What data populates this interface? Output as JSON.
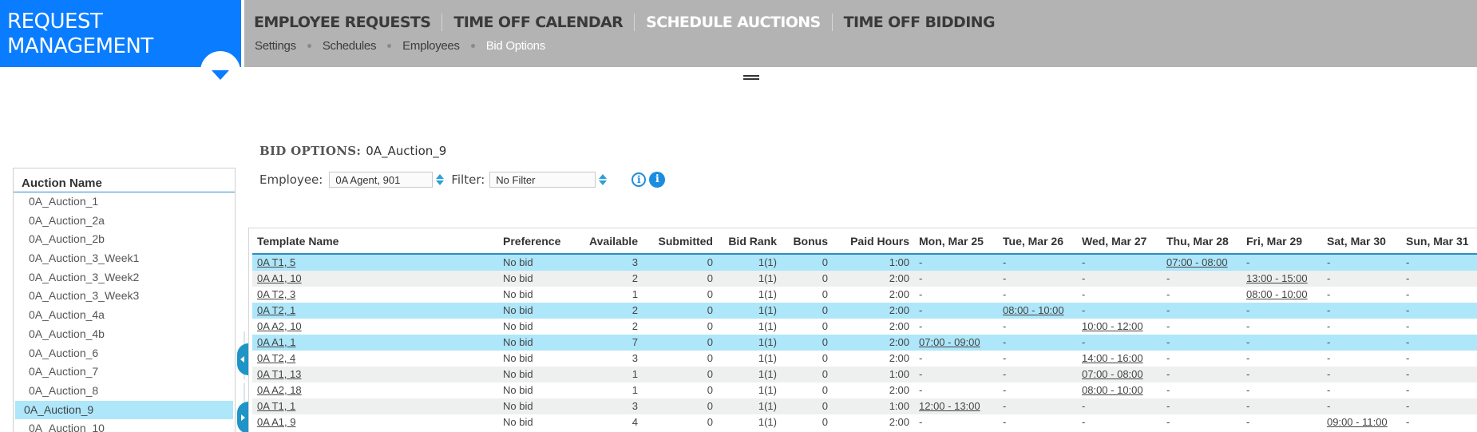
{
  "brand": {
    "line1": "REQUEST",
    "line2": "MANAGEMENT"
  },
  "nav": {
    "tabs": [
      {
        "label": "EMPLOYEE REQUESTS",
        "active": false
      },
      {
        "label": "TIME OFF CALENDAR",
        "active": false
      },
      {
        "label": "SCHEDULE AUCTIONS",
        "active": true
      },
      {
        "label": "TIME OFF BIDDING",
        "active": false
      }
    ],
    "breadcrumbs": [
      {
        "label": "Settings",
        "active": false
      },
      {
        "label": "Schedules",
        "active": false
      },
      {
        "label": "Employees",
        "active": false
      },
      {
        "label": "Bid Options",
        "active": true
      }
    ]
  },
  "page": {
    "title_label": "BID OPTIONS:",
    "title_value": "0A_Auction_9",
    "employee_label": "Employee:",
    "employee_value": "0A Agent, 901",
    "filter_label": "Filter:",
    "filter_value": "No Filter",
    "info_icon_outline": "i",
    "info_icon_filled": "i"
  },
  "auction_list": {
    "header": "Auction Name",
    "items": [
      "0A_Auction_1",
      "0A_Auction_2a",
      "0A_Auction_2b",
      "0A_Auction_3_Week1",
      "0A_Auction_3_Week2",
      "0A_Auction_3_Week3",
      "0A_Auction_4a",
      "0A_Auction_4b",
      "0A_Auction_6",
      "0A_Auction_7",
      "0A_Auction_8",
      "0A_Auction_9",
      "0A_Auction_10"
    ],
    "selected": "0A_Auction_9"
  },
  "table": {
    "columns": [
      "Template Name",
      "Preference",
      "Available",
      "Submitted",
      "Bid Rank",
      "Bonus",
      "Paid Hours",
      "Mon, Mar 25",
      "Tue, Mar 26",
      "Wed, Mar 27",
      "Thu, Mar 28",
      "Fri, Mar 29",
      "Sat, Mar 30",
      "Sun, Mar 31"
    ],
    "rows": [
      {
        "template": "0A T1, 5",
        "preference": "No bid",
        "available": "3",
        "submitted": "0",
        "bid_rank": "1(1)",
        "bonus": "0",
        "paid_hours": "1:00",
        "days": [
          "-",
          "-",
          "-",
          "07:00 - 08:00",
          "-",
          "-",
          "-"
        ],
        "highlight": true
      },
      {
        "template": "0A A1, 10",
        "preference": "No bid",
        "available": "2",
        "submitted": "0",
        "bid_rank": "1(1)",
        "bonus": "0",
        "paid_hours": "2:00",
        "days": [
          "-",
          "-",
          "-",
          "-",
          "13:00 - 15:00",
          "-",
          "-"
        ],
        "highlight": false
      },
      {
        "template": "0A T2, 3",
        "preference": "No bid",
        "available": "1",
        "submitted": "0",
        "bid_rank": "1(1)",
        "bonus": "0",
        "paid_hours": "2:00",
        "days": [
          "-",
          "-",
          "-",
          "-",
          "08:00 - 10:00",
          "-",
          "-"
        ],
        "highlight": false
      },
      {
        "template": "0A T2, 1",
        "preference": "No bid",
        "available": "2",
        "submitted": "0",
        "bid_rank": "1(1)",
        "bonus": "0",
        "paid_hours": "2:00",
        "days": [
          "-",
          "08:00 - 10:00",
          "-",
          "-",
          "-",
          "-",
          "-"
        ],
        "highlight": true
      },
      {
        "template": "0A A2, 10",
        "preference": "No bid",
        "available": "2",
        "submitted": "0",
        "bid_rank": "1(1)",
        "bonus": "0",
        "paid_hours": "2:00",
        "days": [
          "-",
          "-",
          "10:00 - 12:00",
          "-",
          "-",
          "-",
          "-"
        ],
        "highlight": false
      },
      {
        "template": "0A A1, 1",
        "preference": "No bid",
        "available": "7",
        "submitted": "0",
        "bid_rank": "1(1)",
        "bonus": "0",
        "paid_hours": "2:00",
        "days": [
          "07:00 - 09:00",
          "-",
          "-",
          "-",
          "-",
          "-",
          "-"
        ],
        "highlight": true
      },
      {
        "template": "0A T2, 4",
        "preference": "No bid",
        "available": "3",
        "submitted": "0",
        "bid_rank": "1(1)",
        "bonus": "0",
        "paid_hours": "2:00",
        "days": [
          "-",
          "-",
          "14:00 - 16:00",
          "-",
          "-",
          "-",
          "-"
        ],
        "highlight": false
      },
      {
        "template": "0A T1, 13",
        "preference": "No bid",
        "available": "1",
        "submitted": "0",
        "bid_rank": "1(1)",
        "bonus": "0",
        "paid_hours": "1:00",
        "days": [
          "-",
          "-",
          "07:00 - 08:00",
          "-",
          "-",
          "-",
          "-"
        ],
        "highlight": false
      },
      {
        "template": "0A A2, 18",
        "preference": "No bid",
        "available": "1",
        "submitted": "0",
        "bid_rank": "1(1)",
        "bonus": "0",
        "paid_hours": "2:00",
        "days": [
          "-",
          "-",
          "08:00 - 10:00",
          "-",
          "-",
          "-",
          "-"
        ],
        "highlight": false
      },
      {
        "template": "0A T1, 1",
        "preference": "No bid",
        "available": "3",
        "submitted": "0",
        "bid_rank": "1(1)",
        "bonus": "0",
        "paid_hours": "1:00",
        "days": [
          "12:00 - 13:00",
          "-",
          "-",
          "-",
          "-",
          "-",
          "-"
        ],
        "highlight": false
      },
      {
        "template": "0A A1, 9",
        "preference": "No bid",
        "available": "4",
        "submitted": "0",
        "bid_rank": "1(1)",
        "bonus": "0",
        "paid_hours": "2:00",
        "days": [
          "-",
          "-",
          "-",
          "-",
          "-",
          "09:00 - 11:00",
          "-"
        ],
        "highlight": false
      }
    ]
  },
  "colors": {
    "brand_blue": "#0a7cff",
    "nav_gray": "#b3b3b3",
    "highlight_row": "#aee6fa",
    "alt_row": "#eeefef",
    "accent_line": "#2a8fc4",
    "info_blue": "#1a8de0"
  }
}
